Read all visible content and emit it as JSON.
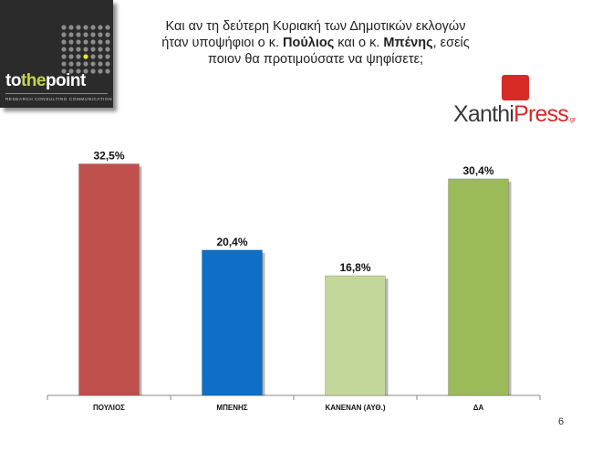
{
  "logo": {
    "word_to": "to",
    "word_the": "the",
    "word_point": "point",
    "tagline": "RESEARCH  CONSULTING  COMMUNICATION"
  },
  "question": {
    "line1": "Και αν τη δεύτερη Κυριακή των Δημοτικών εκλογών",
    "line2_a": "ήταν υποψήφιοι ο κ. ",
    "line2_b": "Πούλιος",
    "line2_c": " και ο κ. ",
    "line2_d": "Μπένης",
    "line2_e": ", εσείς",
    "line3": "ποιον θα προτιμούσατε να ψηφίσετε;"
  },
  "sponsor": {
    "name_a": "Xanthi",
    "name_b": "Press",
    "suffix": ".gr"
  },
  "page_number": "6",
  "chart_data": {
    "type": "bar",
    "categories": [
      "ΠΟΥΛΙΟΣ",
      "ΜΠΕΝΗΣ",
      "ΚΑΝΕΝΑΝ (ΑΥΘ.)",
      "ΔΑ"
    ],
    "values": [
      32.5,
      20.4,
      16.8,
      30.4
    ],
    "value_labels": [
      "32,5%",
      "20,4%",
      "16,8%",
      "30,4%"
    ],
    "colors": [
      "#c0504d",
      "#0f6fc6",
      "#c4d79b",
      "#9bbb59"
    ],
    "title": "",
    "xlabel": "",
    "ylabel": "",
    "ylim": [
      0,
      35
    ],
    "grid": false,
    "legend": "none"
  }
}
